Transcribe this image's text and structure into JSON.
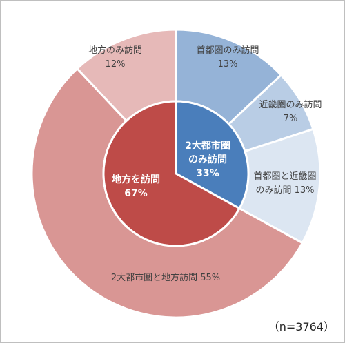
{
  "chart_data": {
    "type": "pie",
    "variant": "nested-donut",
    "inner": [
      {
        "label": "2大都市圏のみ訪問",
        "lines": [
          "2大都市圏",
          "のみ訪問"
        ],
        "value": 33,
        "value_label": "33%",
        "color": "#4a7ebb"
      },
      {
        "label": "地方を訪問",
        "lines": [
          "地方を訪問"
        ],
        "value": 67,
        "value_label": "67%",
        "color": "#be4b48"
      }
    ],
    "outer": [
      {
        "label": "首都圏のみ訪問",
        "lines": [
          "首都圏のみ訪問"
        ],
        "value": 13,
        "value_label": "13%",
        "color": "#95b3d7"
      },
      {
        "label": "近畿圏のみ訪問",
        "lines": [
          "近畿圏のみ訪問"
        ],
        "value": 7,
        "value_label": "7%",
        "color": "#b9cde5"
      },
      {
        "label": "首都圏と近畿圏のみ訪問",
        "lines": [
          "首都圏と近畿圏",
          "のみ訪問"
        ],
        "value": 13,
        "value_label": "13%",
        "color": "#dce6f2"
      },
      {
        "label": "2大都市圏と地方訪問",
        "lines": [
          "2大都市圏と地方訪問"
        ],
        "value": 55,
        "value_label": "55%",
        "color": "#d99694"
      },
      {
        "label": "地方のみ訪問",
        "lines": [
          "地方のみ訪問"
        ],
        "value": 12,
        "value_label": "12%",
        "color": "#e6b9b8"
      }
    ],
    "start_angle_deg": 0,
    "direction": "clockwise"
  },
  "note": "（n=3764）"
}
